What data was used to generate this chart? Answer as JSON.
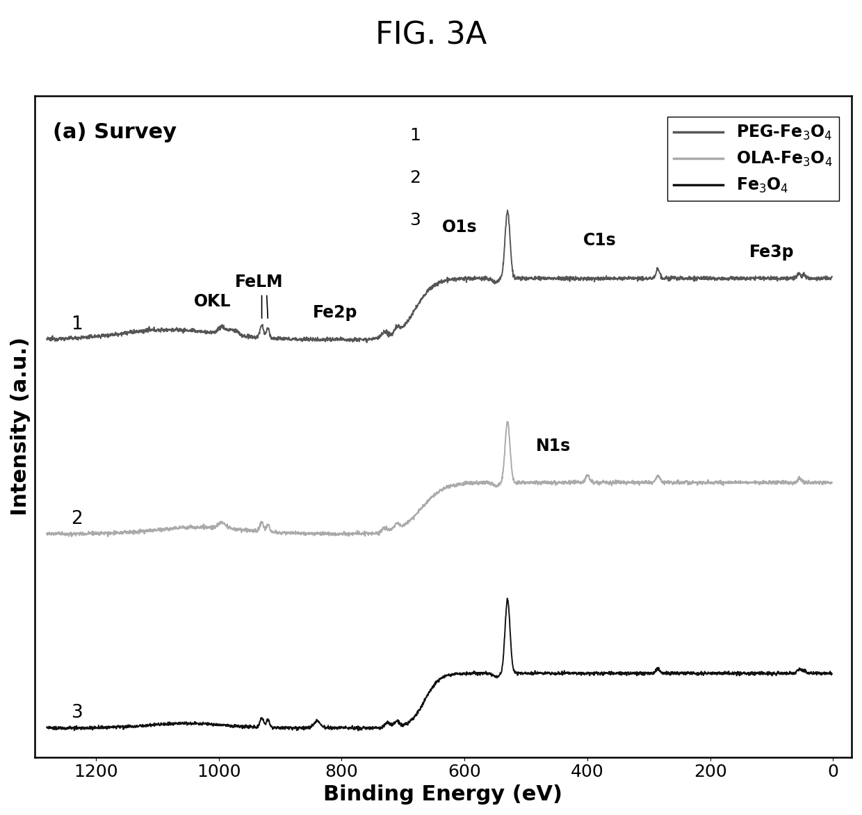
{
  "title": "FIG. 3A",
  "title_fontsize": 32,
  "panel_label": "(a) Survey",
  "xlabel": "Binding Energy (eV)",
  "ylabel": "Intensity (a.u.)",
  "xlabel_fontsize": 22,
  "ylabel_fontsize": 22,
  "xticks": [
    1200,
    1000,
    800,
    600,
    400,
    200,
    0
  ],
  "legend_labels": [
    "PEG-Fe$_3$O$_4$",
    "OLA-Fe$_3$O$_4$",
    "Fe$_3$O$_4$"
  ],
  "curve_colors": [
    "#555555",
    "#aaaaaa",
    "#111111"
  ],
  "offsets": [
    2.2,
    1.1,
    0.0
  ],
  "background_color": "#ffffff"
}
